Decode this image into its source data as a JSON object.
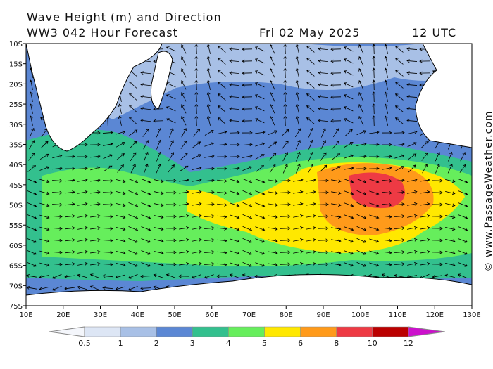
{
  "header": {
    "title": "Wave Height (m) and Direction",
    "model": "WW3 042 Hour Forecast",
    "date": "Fri 02 May 2025",
    "time": "12 UTC"
  },
  "lat_labels": [
    "10S",
    "15S",
    "20S",
    "25S",
    "30S",
    "35S",
    "40S",
    "45S",
    "50S",
    "55S",
    "60S",
    "65S",
    "70S",
    "75S"
  ],
  "lon_labels": [
    "10E",
    "20E",
    "30E",
    "40E",
    "50E",
    "60E",
    "70E",
    "80E",
    "90E",
    "100E",
    "110E",
    "120E",
    "130E"
  ],
  "colorbar": {
    "labels": [
      0.5,
      1,
      2,
      3,
      4,
      5,
      6,
      8,
      10,
      12
    ],
    "colors": [
      "#f4f6fb",
      "#dde6f5",
      "#a8c0e6",
      "#5b87d4",
      "#33c08e",
      "#66ee5c",
      "#ffe800",
      "#ff9a1a",
      "#ee3a44",
      "#bb0000",
      "#cc11cc"
    ]
  },
  "watermark": "© www.PassageWeather.com"
}
